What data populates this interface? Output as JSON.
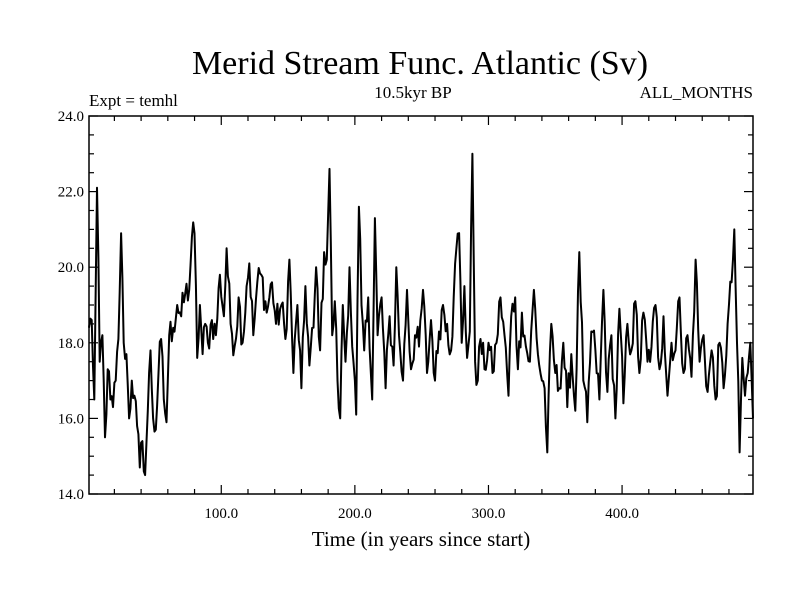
{
  "chart_data": {
    "type": "line",
    "title": "Merid Stream Func. Atlantic (Sv)",
    "subtitle": "10.5kyr BP",
    "annotation_left": "Expt = temhl",
    "annotation_right": "ALL_MONTHS",
    "xlabel": "Time (in years since start)",
    "ylabel": "",
    "xlim": [
      1,
      498
    ],
    "ylim": [
      14.0,
      24.0
    ],
    "xticks": [
      100,
      200,
      300,
      400
    ],
    "xtick_labels": [
      "100.0",
      "200.0",
      "300.0",
      "400.0"
    ],
    "yticks": [
      14,
      16,
      18,
      20,
      22,
      24
    ],
    "ytick_labels": [
      "14.0",
      "16.0",
      "18.0",
      "20.0",
      "22.0",
      "24.0"
    ],
    "grid": false,
    "series": [
      {
        "name": "Merid Stream Func. Atlantic",
        "color": "#000000",
        "anchors": [
          [
            1,
            18.4
          ],
          [
            3,
            18.6
          ],
          [
            5,
            16.5
          ],
          [
            7,
            22.1
          ],
          [
            9,
            17.5
          ],
          [
            11,
            18.2
          ],
          [
            13,
            15.5
          ],
          [
            15,
            17.3
          ],
          [
            17,
            16.5
          ],
          [
            19,
            16.3
          ],
          [
            21,
            17.0
          ],
          [
            23,
            18.1
          ],
          [
            25,
            20.9
          ],
          [
            27,
            18.0
          ],
          [
            29,
            17.7
          ],
          [
            31,
            16.0
          ],
          [
            33,
            17.0
          ],
          [
            35,
            16.6
          ],
          [
            37,
            15.8
          ],
          [
            39,
            14.7
          ],
          [
            41,
            15.4
          ],
          [
            43,
            14.5
          ],
          [
            45,
            16.2
          ],
          [
            47,
            17.8
          ],
          [
            49,
            16.0
          ],
          [
            51,
            15.7
          ],
          [
            53,
            17.2
          ],
          [
            55,
            18.1
          ],
          [
            57,
            16.5
          ],
          [
            59,
            15.9
          ],
          [
            61,
            18.2
          ],
          [
            64,
            18.4
          ],
          [
            67,
            19.0
          ],
          [
            70,
            18.7
          ],
          [
            73,
            19.3
          ],
          [
            76,
            19.4
          ],
          [
            78,
            20.8
          ],
          [
            80,
            20.9
          ],
          [
            82,
            17.6
          ],
          [
            84,
            19.0
          ],
          [
            86,
            17.7
          ],
          [
            88,
            18.5
          ],
          [
            90,
            18.0
          ],
          [
            93,
            18.6
          ],
          [
            96,
            18.2
          ],
          [
            99,
            19.8
          ],
          [
            102,
            18.7
          ],
          [
            104,
            20.5
          ],
          [
            107,
            18.5
          ],
          [
            110,
            17.9
          ],
          [
            113,
            19.2
          ],
          [
            116,
            18.0
          ],
          [
            119,
            19.5
          ],
          [
            121,
            20.1
          ],
          [
            124,
            18.2
          ],
          [
            127,
            19.6
          ],
          [
            130,
            19.8
          ],
          [
            134,
            18.8
          ],
          [
            138,
            19.6
          ],
          [
            141,
            18.5
          ],
          [
            145,
            19.0
          ],
          [
            148,
            18.1
          ],
          [
            151,
            20.2
          ],
          [
            154,
            17.2
          ],
          [
            157,
            19.0
          ],
          [
            160,
            16.8
          ],
          [
            163,
            19.5
          ],
          [
            166,
            17.4
          ],
          [
            169,
            18.4
          ],
          [
            171,
            20.0
          ],
          [
            174,
            17.8
          ],
          [
            177,
            20.4
          ],
          [
            179,
            20.2
          ],
          [
            181,
            22.6
          ],
          [
            183,
            18.2
          ],
          [
            185,
            19.1
          ],
          [
            187,
            17.0
          ],
          [
            189,
            16.0
          ],
          [
            191,
            19.0
          ],
          [
            193,
            17.5
          ],
          [
            196,
            20.0
          ],
          [
            198,
            17.9
          ],
          [
            201,
            16.1
          ],
          [
            203,
            21.6
          ],
          [
            205,
            19.0
          ],
          [
            207,
            17.8
          ],
          [
            210,
            19.2
          ],
          [
            213,
            16.5
          ],
          [
            215,
            21.3
          ],
          [
            217,
            18.2
          ],
          [
            220,
            19.2
          ],
          [
            223,
            16.8
          ],
          [
            226,
            18.7
          ],
          [
            229,
            17.4
          ],
          [
            231,
            20.0
          ],
          [
            233,
            18.2
          ],
          [
            236,
            17.0
          ],
          [
            239,
            19.4
          ],
          [
            242,
            17.3
          ],
          [
            245,
            18.2
          ],
          [
            248,
            17.9
          ],
          [
            251,
            19.4
          ],
          [
            254,
            17.2
          ],
          [
            257,
            18.6
          ],
          [
            260,
            17.0
          ],
          [
            263,
            18.3
          ],
          [
            266,
            19.0
          ],
          [
            269,
            18.5
          ],
          [
            272,
            17.8
          ],
          [
            274,
            19.2
          ],
          [
            276,
            20.5
          ],
          [
            278,
            20.9
          ],
          [
            280,
            18.0
          ],
          [
            282,
            19.5
          ],
          [
            284,
            17.6
          ],
          [
            286,
            18.3
          ],
          [
            288,
            23.0
          ],
          [
            290,
            17.5
          ],
          [
            292,
            17.0
          ],
          [
            294,
            18.1
          ],
          [
            297,
            17.3
          ],
          [
            300,
            18.0
          ],
          [
            303,
            17.2
          ],
          [
            306,
            18.0
          ],
          [
            309,
            19.2
          ],
          [
            312,
            18.2
          ],
          [
            315,
            16.6
          ],
          [
            317,
            18.7
          ],
          [
            320,
            19.2
          ],
          [
            322,
            17.3
          ],
          [
            325,
            18.8
          ],
          [
            328,
            17.9
          ],
          [
            331,
            17.5
          ],
          [
            334,
            19.4
          ],
          [
            337,
            17.7
          ],
          [
            340,
            17.0
          ],
          [
            342,
            16.8
          ],
          [
            344,
            15.1
          ],
          [
            347,
            18.5
          ],
          [
            350,
            17.2
          ],
          [
            353,
            16.8
          ],
          [
            356,
            18.0
          ],
          [
            359,
            16.3
          ],
          [
            362,
            17.7
          ],
          [
            365,
            16.2
          ],
          [
            368,
            20.4
          ],
          [
            371,
            17.0
          ],
          [
            374,
            15.9
          ],
          [
            377,
            18.3
          ],
          [
            380,
            17.8
          ],
          [
            383,
            16.5
          ],
          [
            386,
            19.4
          ],
          [
            389,
            16.7
          ],
          [
            392,
            18.2
          ],
          [
            395,
            16.0
          ],
          [
            398,
            18.9
          ],
          [
            401,
            16.4
          ],
          [
            404,
            18.5
          ],
          [
            407,
            17.8
          ],
          [
            410,
            19.1
          ],
          [
            413,
            17.2
          ],
          [
            416,
            18.8
          ],
          [
            419,
            17.5
          ],
          [
            422,
            17.9
          ],
          [
            425,
            19.0
          ],
          [
            428,
            17.3
          ],
          [
            431,
            18.7
          ],
          [
            434,
            16.6
          ],
          [
            437,
            18.0
          ],
          [
            440,
            17.8
          ],
          [
            443,
            19.2
          ],
          [
            446,
            17.2
          ],
          [
            449,
            18.2
          ],
          [
            452,
            17.1
          ],
          [
            455,
            20.2
          ],
          [
            458,
            17.5
          ],
          [
            461,
            18.2
          ],
          [
            464,
            16.7
          ],
          [
            467,
            17.8
          ],
          [
            470,
            16.5
          ],
          [
            473,
            18.0
          ],
          [
            476,
            16.8
          ],
          [
            479,
            18.5
          ],
          [
            482,
            19.6
          ],
          [
            484,
            21.0
          ],
          [
            486,
            18.0
          ],
          [
            488,
            15.1
          ],
          [
            490,
            17.6
          ],
          [
            492,
            16.6
          ],
          [
            494,
            17.2
          ],
          [
            496,
            18.0
          ],
          [
            498,
            16.0
          ]
        ]
      }
    ]
  }
}
